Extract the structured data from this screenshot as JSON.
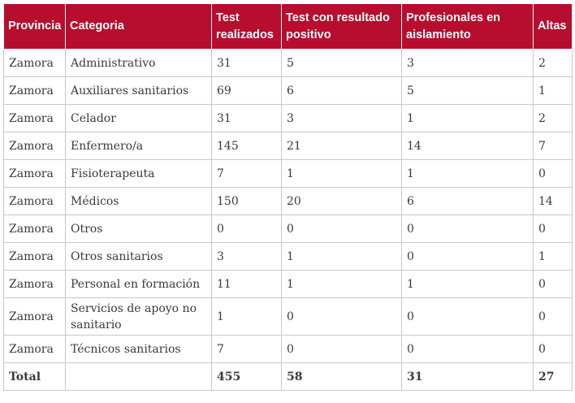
{
  "headers": [
    "Provincia",
    "Categoria",
    "Test realizados",
    "Test con resultado positivo",
    "Profesionales en aislamiento",
    "Altas"
  ],
  "rows": [
    [
      "Zamora",
      "Administrativo",
      "31",
      "5",
      "3",
      "2"
    ],
    [
      "Zamora",
      "Auxiliares sanitarios",
      "69",
      "6",
      "5",
      "1"
    ],
    [
      "Zamora",
      "Celador",
      "31",
      "3",
      "1",
      "2"
    ],
    [
      "Zamora",
      "Enfermero/a",
      "145",
      "21",
      "14",
      "7"
    ],
    [
      "Zamora",
      "Fisioterapeuta",
      "7",
      "1",
      "1",
      "0"
    ],
    [
      "Zamora",
      "Médicos",
      "150",
      "20",
      "6",
      "14"
    ],
    [
      "Zamora",
      "Otros",
      "0",
      "0",
      "0",
      "0"
    ],
    [
      "Zamora",
      "Otros sanitarios",
      "3",
      "1",
      "0",
      "1"
    ],
    [
      "Zamora",
      "Personal en formación",
      "11",
      "1",
      "1",
      "0"
    ],
    [
      "Zamora",
      "Servicios de apoyo no sanitario",
      "1",
      "0",
      "0",
      "0"
    ],
    [
      "Zamora",
      "Técnicos sanitarios",
      "7",
      "0",
      "0",
      "0"
    ]
  ],
  "total": [
    "Total",
    "",
    "455",
    "58",
    "31",
    "27"
  ],
  "colors": {
    "header_bg": "#b70d2e",
    "header_text": "#ffffff",
    "border": "#c9c9c9"
  }
}
